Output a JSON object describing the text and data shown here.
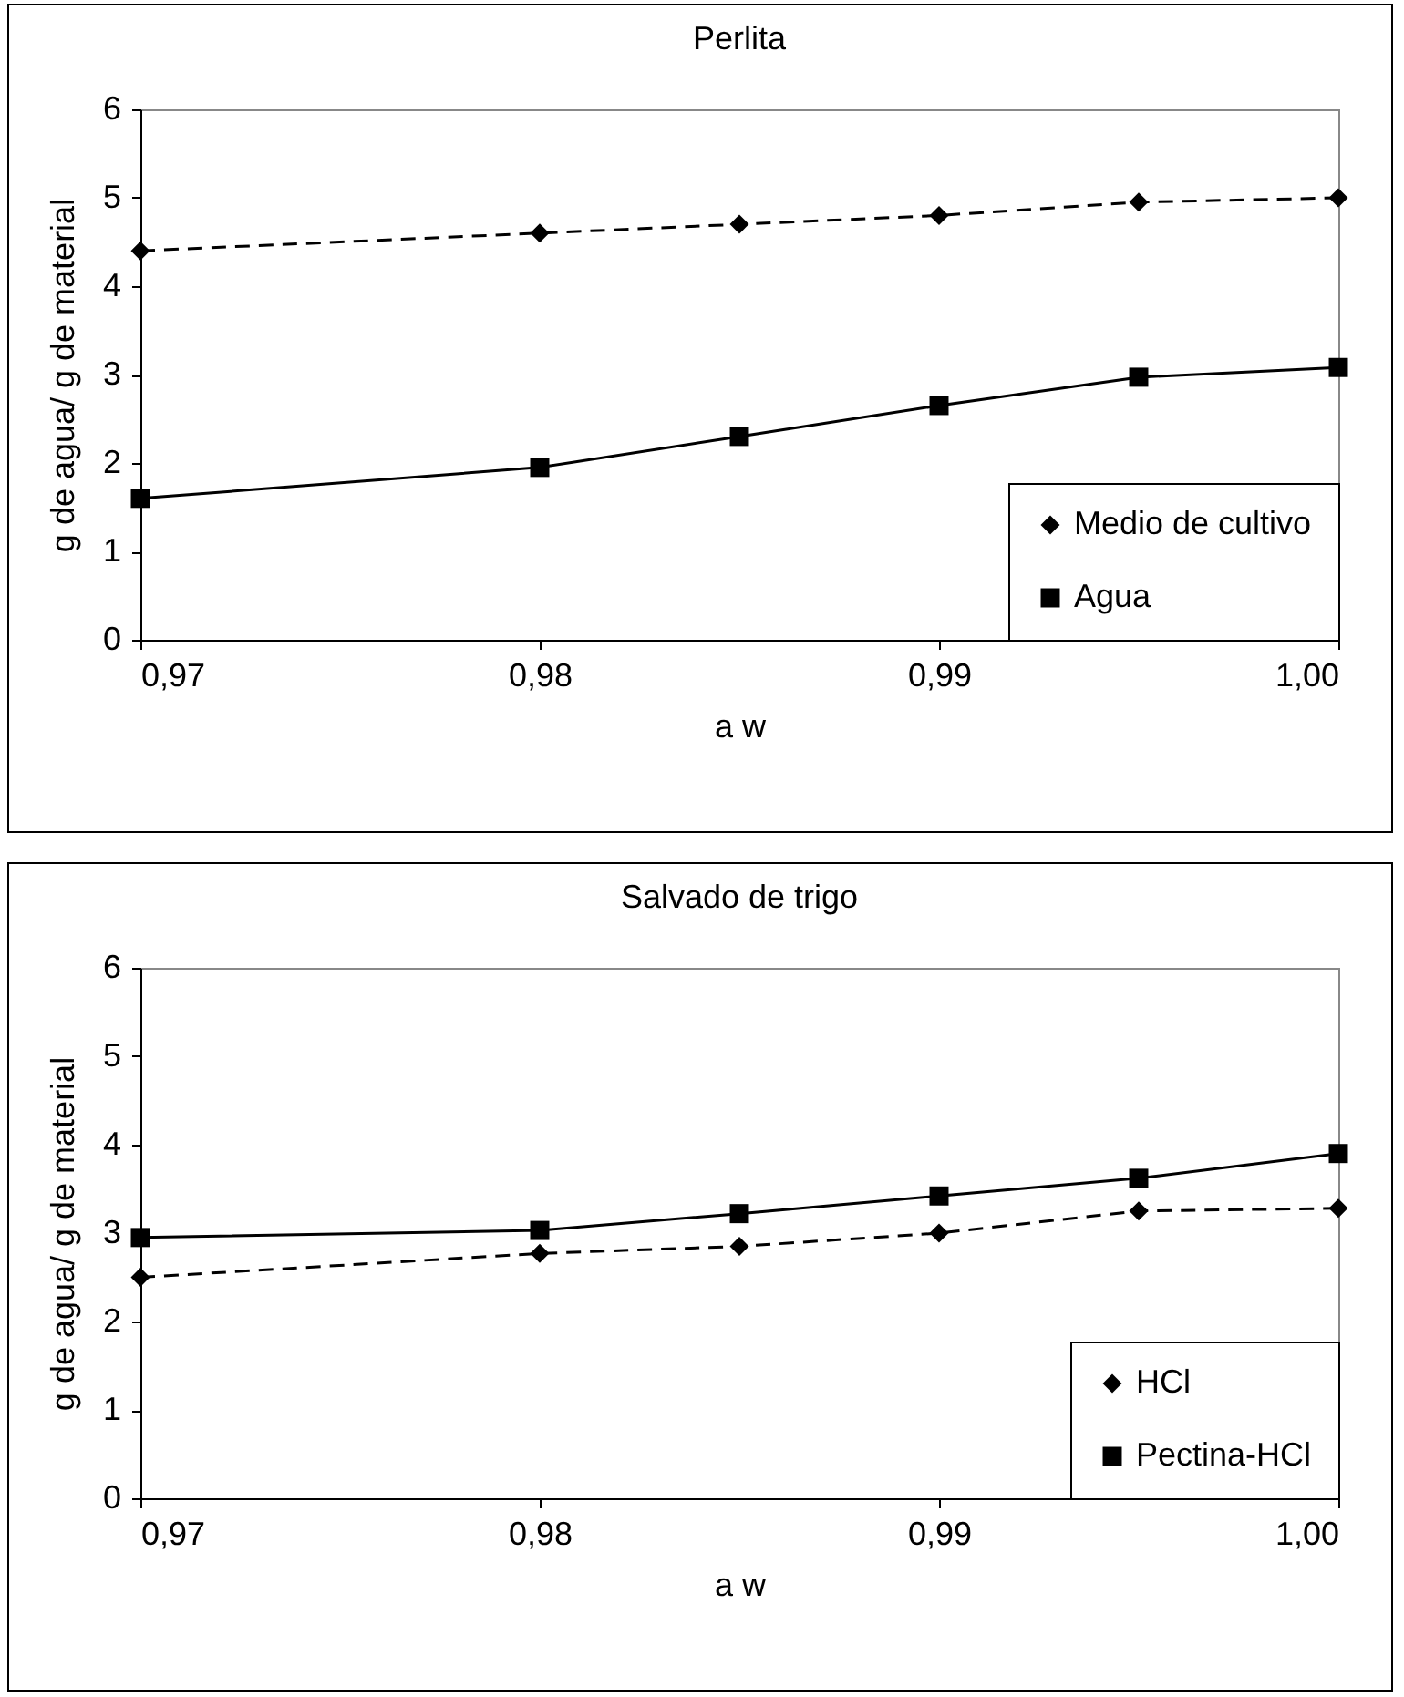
{
  "chart_data": [
    {
      "type": "line",
      "title": "Perlita",
      "xlabel": "a w",
      "ylabel": "g de agua/ g de material",
      "x": [
        0.97,
        0.98,
        0.985,
        0.99,
        0.995,
        1.0
      ],
      "series": [
        {
          "name": "Medio de cultivo",
          "color": "#000000",
          "values": [
            4.4,
            4.6,
            4.7,
            4.8,
            4.95,
            5.0
          ],
          "marker": "diamond",
          "line_style": "dashed"
        },
        {
          "name": "Agua",
          "color": "#000000",
          "values": [
            1.6,
            1.95,
            2.3,
            2.65,
            2.97,
            3.08
          ],
          "marker": "square",
          "line_style": "solid"
        }
      ],
      "xlim": [
        0.97,
        1.0
      ],
      "xticks": [
        {
          "value": 0.97,
          "label": "0,97"
        },
        {
          "value": 0.98,
          "label": "0,98"
        },
        {
          "value": 0.99,
          "label": "0,99"
        },
        {
          "value": 1.0,
          "label": "1,00"
        }
      ],
      "ylim": [
        0,
        6
      ],
      "yticks": [
        0,
        1,
        2,
        3,
        4,
        5,
        6
      ],
      "grid": false,
      "legend": "bottom right"
    },
    {
      "type": "line",
      "title": "Salvado de trigo",
      "xlabel": "a w",
      "ylabel": "g de agua/ g de material",
      "x": [
        0.97,
        0.98,
        0.985,
        0.99,
        0.995,
        1.0
      ],
      "series": [
        {
          "name": "HCl",
          "color": "#000000",
          "values": [
            2.5,
            2.77,
            2.85,
            3.0,
            3.25,
            3.28
          ],
          "marker": "diamond",
          "line_style": "dashed"
        },
        {
          "name": "Pectina-HCl",
          "color": "#000000",
          "values": [
            2.95,
            3.03,
            3.22,
            3.42,
            3.62,
            3.9
          ],
          "marker": "square",
          "line_style": "solid"
        }
      ],
      "xlim": [
        0.97,
        1.0
      ],
      "xticks": [
        {
          "value": 0.97,
          "label": "0,97"
        },
        {
          "value": 0.98,
          "label": "0,98"
        },
        {
          "value": 0.99,
          "label": "0,99"
        },
        {
          "value": 1.0,
          "label": "1,00"
        }
      ],
      "ylim": [
        0,
        6
      ],
      "yticks": [
        0,
        1,
        2,
        3,
        4,
        5,
        6
      ],
      "grid": false,
      "legend": "bottom right"
    }
  ]
}
